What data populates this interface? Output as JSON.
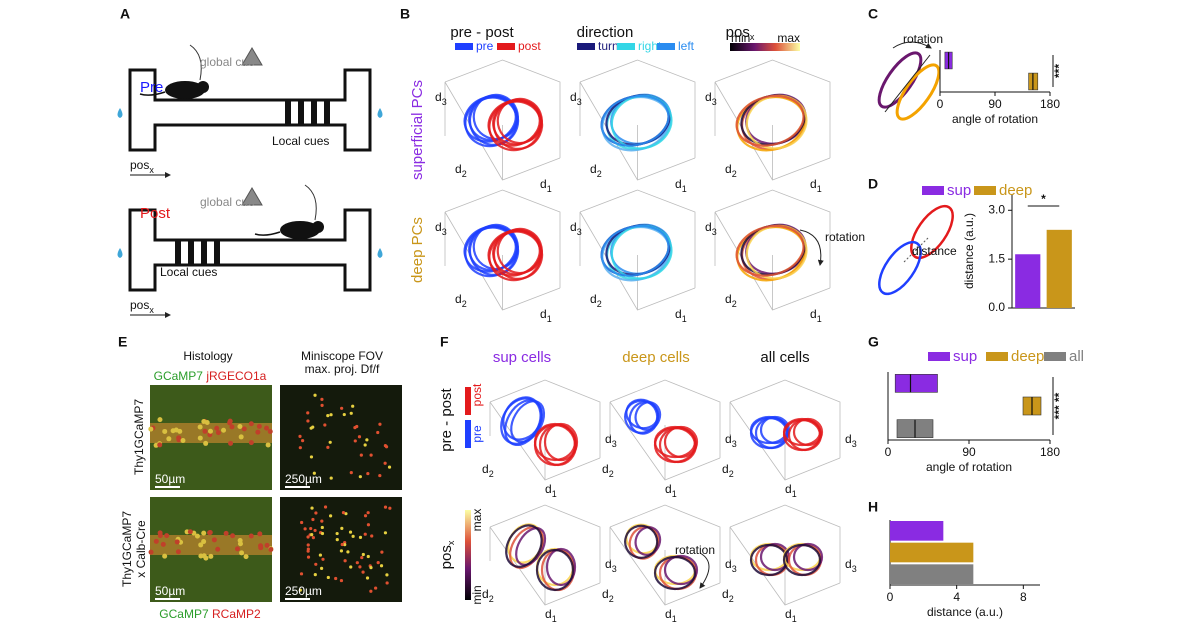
{
  "panels": {
    "A": {
      "label": "A",
      "pre": "Pre",
      "post": "Post",
      "cue": "global cue",
      "local": "Local cues",
      "pos": "pos",
      "pos_sub": "x"
    },
    "B": {
      "label": "B",
      "columns": [
        "pre - post",
        "direction",
        "pos"
      ],
      "pos_sub": "x",
      "legend_prepost": [
        "pre",
        "post"
      ],
      "legend_direction": [
        "turn",
        "right",
        "left"
      ],
      "colorbar": [
        "min",
        "max"
      ],
      "rows": [
        "superficial PCs",
        "deep PCs"
      ],
      "axis": "d",
      "axis_subs": [
        "1",
        "2",
        "3"
      ],
      "annotation": "rotation"
    },
    "C": {
      "label": "C",
      "annotation": "rotation"
    },
    "D": {
      "label": "D",
      "annotation": "distance"
    },
    "E": {
      "label": "E",
      "histology": "Histology",
      "fov": [
        "Miniscope FOV",
        "max. proj. Df/f"
      ],
      "top_stain": [
        "GCaMP7",
        "jRGECO1a"
      ],
      "bottom_stain": [
        "GCaMP7",
        "RCaMP2"
      ],
      "rows": [
        "Thy1GCaMP7",
        "Thy1GCaMP7",
        "x Calb-Cre"
      ],
      "scales": [
        "50µm",
        "250µm"
      ]
    },
    "F": {
      "label": "F",
      "columns": [
        "sup cells",
        "deep cells",
        "all cells"
      ],
      "rows": [
        "pre - post",
        "pos"
      ],
      "pos_sub": "x",
      "legend_prepost": [
        "pre",
        "post"
      ],
      "colorbar": [
        "min",
        "max"
      ],
      "annotation": "rotation"
    },
    "G": {
      "label": "G"
    },
    "H": {
      "label": "H"
    }
  },
  "chart_data": [
    {
      "type": "box",
      "xlabel": "angle of rotation",
      "xlim": [
        0,
        180
      ],
      "xticks": [
        0,
        90,
        180
      ],
      "annotation": "***",
      "series": [
        {
          "color": "#8a2be2",
          "q1": 8,
          "median": 14,
          "q3": 20
        },
        {
          "color": "#c9961a",
          "q1": 145,
          "median": 152,
          "q3": 160
        }
      ]
    },
    {
      "type": "bar",
      "ylabel": "distance (a.u.)",
      "categories": [
        "sup",
        "deep"
      ],
      "values": [
        1.65,
        2.4
      ],
      "colors": [
        "#8a2be2",
        "#c9961a"
      ],
      "ylim": [
        0,
        3.5
      ],
      "yticks": [
        {
          "value": 0,
          "label": "0.0"
        },
        1.5,
        {
          "value": 3,
          "label": "3.0"
        }
      ],
      "annotation": "*"
    },
    {
      "type": "box",
      "xlabel": "angle of rotation",
      "xlim": [
        0,
        180
      ],
      "xticks": [
        0,
        90,
        180
      ],
      "annotation": "*** **",
      "series": [
        {
          "name": "sup",
          "color": "#8a2be2",
          "q1": 8,
          "median": 25,
          "q3": 55
        },
        {
          "name": "deep",
          "color": "#c9961a",
          "q1": 150,
          "median": 160,
          "q3": 170
        },
        {
          "name": "all",
          "color": "#808080",
          "q1": 10,
          "median": 30,
          "q3": 50
        }
      ]
    },
    {
      "type": "barh",
      "xlabel": "distance (a.u.)",
      "values": [
        3.2,
        5.0,
        5.0
      ],
      "colors": [
        "#8a2be2",
        "#c9961a",
        "#808080"
      ],
      "xlim": [
        0,
        9
      ],
      "xticks": [
        0,
        4,
        8
      ]
    }
  ]
}
